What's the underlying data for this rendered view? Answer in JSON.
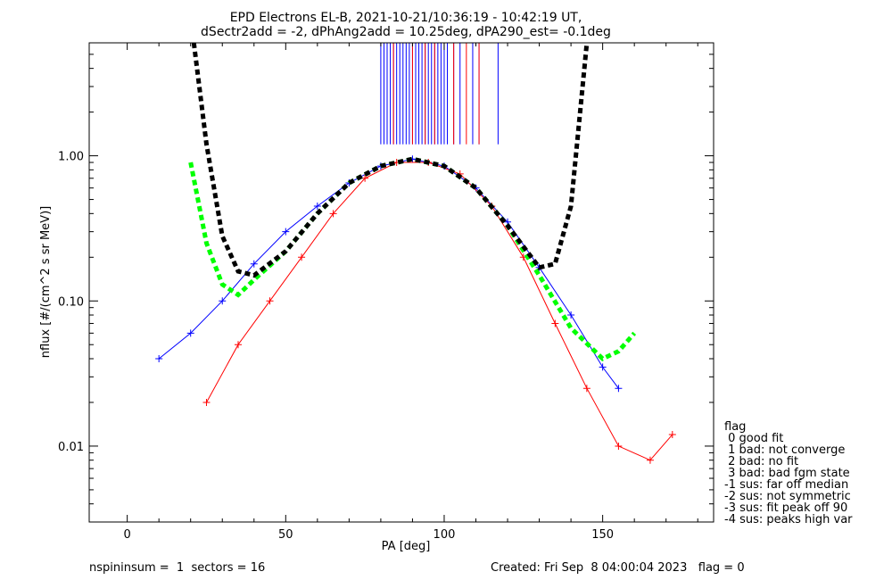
{
  "chart_data": {
    "type": "line",
    "title_line1": "EPD Electrons EL-B, 2021-10-21/10:36:19 - 10:42:19 UT,",
    "title_line2": "dSectr2add = -2, dPhAng2add = 10.25deg, dPA290_est=  -0.1deg",
    "xlabel": "PA [deg]",
    "ylabel": "nflux [#/(cm^2 s sr MeV)]",
    "xlim": [
      -12,
      185
    ],
    "ylim": [
      0.003,
      6.0
    ],
    "yscale": "log",
    "xticks": [
      0,
      50,
      100,
      150
    ],
    "xtick_labels": [
      "0",
      "50",
      "100",
      "150"
    ],
    "yticks": [
      0.01,
      0.1,
      1.0
    ],
    "ytick_labels": [
      "0.01",
      "0.10",
      "1.00"
    ],
    "series": [
      {
        "color": "#0000ff",
        "x": [
          10,
          20,
          30,
          40,
          50,
          60,
          70,
          80,
          90,
          100,
          110,
          120,
          130,
          140,
          150,
          155
        ],
        "y": [
          0.04,
          0.06,
          0.1,
          0.18,
          0.3,
          0.45,
          0.65,
          0.85,
          0.95,
          0.85,
          0.6,
          0.35,
          0.17,
          0.08,
          0.035,
          0.025
        ]
      },
      {
        "color": "#ff0000",
        "x": [
          25,
          35,
          45,
          55,
          65,
          75,
          85,
          95,
          105,
          115,
          125,
          135,
          145,
          155,
          165,
          172
        ],
        "y": [
          0.02,
          0.05,
          0.1,
          0.2,
          0.4,
          0.7,
          0.9,
          0.9,
          0.75,
          0.45,
          0.2,
          0.07,
          0.025,
          0.01,
          0.008,
          0.012
        ]
      },
      {
        "color": "#00ff00",
        "dashed": true,
        "x": [
          20,
          25,
          30,
          35,
          40,
          50,
          60,
          70,
          80,
          90,
          100,
          110,
          120,
          130,
          140,
          150,
          155,
          160
        ],
        "y": [
          0.9,
          0.25,
          0.13,
          0.11,
          0.14,
          0.22,
          0.4,
          0.65,
          0.85,
          0.95,
          0.85,
          0.6,
          0.33,
          0.15,
          0.065,
          0.04,
          0.045,
          0.06
        ]
      },
      {
        "color": "#000000",
        "dashed": true,
        "x": [
          21,
          25,
          30,
          35,
          40,
          50,
          60,
          70,
          80,
          90,
          100,
          110,
          120,
          130,
          135,
          140,
          145
        ],
        "y": [
          6,
          1.2,
          0.28,
          0.16,
          0.15,
          0.22,
          0.4,
          0.65,
          0.85,
          0.95,
          0.85,
          0.6,
          0.33,
          0.17,
          0.18,
          0.45,
          6
        ]
      }
    ],
    "blue_spike_x": [
      80,
      81,
      82,
      83,
      84,
      85,
      86,
      87,
      88,
      89,
      90,
      91,
      92,
      93,
      94,
      95,
      96,
      97,
      98,
      99,
      100,
      101,
      103,
      105,
      109,
      111,
      117
    ],
    "red_spike_x": [
      84,
      90,
      94,
      97,
      103,
      107,
      111
    ],
    "legend": {
      "title": "flag",
      "entries": [
        " 0 good fit",
        " 1 bad: not converge",
        " 2 bad: no fit",
        " 3 bad: bad fgm state",
        "-1 sus: far off median",
        "-2 sus: not symmetric",
        "-3 sus: fit peak off 90",
        "-4 sus: peaks high var"
      ]
    },
    "footer_left": "nspininsum =  1  sectors = 16",
    "footer_right": "Created: Fri Sep  8 04:00:04 2023   flag = 0"
  }
}
